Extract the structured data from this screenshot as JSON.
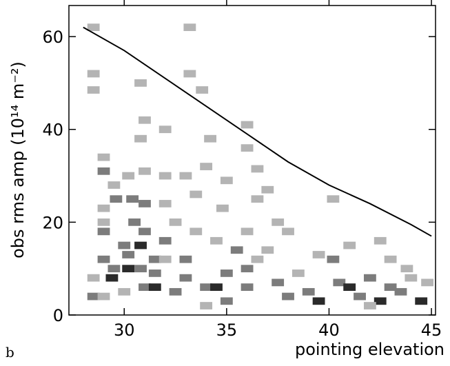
{
  "chart_data": {
    "type": "heatmap",
    "title": "b",
    "x_label": "pointing elevation",
    "y_label": "obs rms amp (10¹⁴ m⁻²)",
    "xlim": [
      27.3,
      45.2
    ],
    "ylim": [
      0,
      66.7
    ],
    "xticks": [
      30,
      35,
      40,
      45
    ],
    "yticks": [
      0,
      20,
      40,
      60
    ],
    "cells": {
      "x": [
        28.5,
        28.5,
        28.5,
        33.2,
        33.2,
        30.8,
        33.8,
        31,
        30.8,
        32,
        36,
        36,
        34.2,
        36.5,
        40.2,
        37,
        36.5,
        29,
        29,
        29.5,
        30.2,
        31,
        32,
        33,
        34,
        35,
        33.5,
        34.8,
        29,
        29,
        29,
        29.6,
        30.4,
        31,
        32,
        30.5,
        31,
        30,
        30.8,
        30.2,
        29,
        31.5,
        32,
        29.5,
        30.2,
        30.8,
        31.5,
        29.4,
        28.5,
        28.5,
        29,
        30,
        31,
        31.5,
        32.5,
        33,
        34,
        34.5,
        35,
        36,
        36,
        36.5,
        37,
        37.5,
        38,
        38.5,
        39,
        39.5,
        39.5,
        40.2,
        40.5,
        41,
        41.5,
        42,
        42.5,
        43,
        43.5,
        44,
        44.5,
        44.8,
        38,
        36,
        34.5,
        35.5,
        37.5,
        33,
        33.5,
        32.5,
        41,
        42.5,
        43.8,
        32,
        35,
        34,
        42,
        43
      ],
      "y": [
        62,
        52,
        48.5,
        62,
        52,
        50,
        48.5,
        42,
        38,
        40,
        41,
        36,
        38,
        31.5,
        25,
        27,
        25,
        34,
        31,
        28,
        30,
        31,
        30,
        30,
        32,
        29,
        26,
        23,
        23,
        20,
        18,
        25,
        25,
        24,
        24,
        20,
        18,
        15,
        15,
        13,
        12,
        12,
        12,
        10,
        10,
        10,
        9,
        8,
        8,
        4,
        4,
        5,
        6,
        6,
        5,
        8,
        6,
        6,
        9,
        10,
        6,
        12,
        14,
        7,
        4,
        9,
        5,
        3,
        13,
        12,
        7,
        6,
        4,
        8,
        3,
        12,
        5,
        8,
        3,
        7,
        18,
        18,
        16,
        14,
        20,
        12,
        18,
        20,
        15,
        16,
        10,
        16,
        3,
        2,
        2,
        6
      ],
      "values": [
        1,
        1,
        1,
        1,
        1,
        1,
        1,
        1,
        1,
        1,
        1,
        1,
        1,
        1,
        1,
        1,
        1,
        1,
        2,
        1,
        1,
        1,
        1,
        1,
        1,
        1,
        1,
        1,
        1,
        1,
        2,
        3,
        2,
        2,
        1,
        2,
        3,
        2,
        4,
        3,
        2,
        2,
        1,
        3,
        4,
        3,
        2,
        4,
        1,
        2,
        1,
        1,
        2,
        4,
        2,
        2,
        3,
        4,
        2,
        3,
        2,
        1,
        1,
        2,
        3,
        1,
        2,
        4,
        1,
        2,
        3,
        4,
        3,
        2,
        4,
        1,
        2,
        1,
        4,
        1,
        1,
        1,
        1,
        2,
        1,
        2,
        1,
        1,
        1,
        1,
        1,
        2,
        2,
        1,
        1,
        2
      ]
    },
    "series": [
      {
        "x": [
          28,
          30,
          32,
          34,
          36,
          38,
          40,
          42,
          44,
          45
        ],
        "values": [
          62,
          57,
          51,
          45,
          39,
          33,
          28,
          24,
          19.5,
          17
        ],
        "color": "#000000"
      }
    ]
  }
}
